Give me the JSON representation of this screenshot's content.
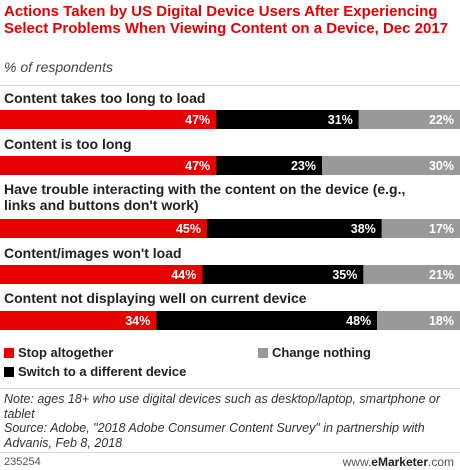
{
  "title": "Actions Taken by US Digital Device Users After Experiencing Select Problems When Viewing Content on a Device, Dec 2017",
  "subtitle": "% of respondents",
  "colors": {
    "stop": "#e60000",
    "switch": "#000000",
    "nothing": "#999999",
    "title": "#e60000"
  },
  "chart_data": {
    "type": "bar",
    "orientation": "horizontal",
    "stacked": true,
    "categories": [
      "Content takes too long to load",
      "Content is too long",
      "Have trouble interacting with the content on the device (e.g., links and buttons don't work)",
      "Content/images won't load",
      "Content not displaying well on current device"
    ],
    "series": [
      {
        "name": "Stop altogether",
        "values": [
          47,
          47,
          45,
          44,
          34
        ]
      },
      {
        "name": "Switch to a different device",
        "values": [
          31,
          23,
          38,
          35,
          48
        ]
      },
      {
        "name": "Change nothing",
        "values": [
          22,
          30,
          17,
          21,
          18
        ]
      }
    ],
    "value_suffix": "%",
    "ylim": [
      0,
      100
    ]
  },
  "legend": {
    "stop": "Stop altogether",
    "switch": "Switch to a different device",
    "nothing": "Change nothing"
  },
  "note": "Note: ages 18+ who use digital devices such as desktop/laptop, smartphone or tablet",
  "source": "Source: Adobe, \"2018 Adobe Consumer Content Survey\" in partnership with Advanis, Feb 8, 2018",
  "chart_id": "235254",
  "brand": {
    "prefix": "www.",
    "name": "eMarketer",
    "suffix": ".com"
  }
}
